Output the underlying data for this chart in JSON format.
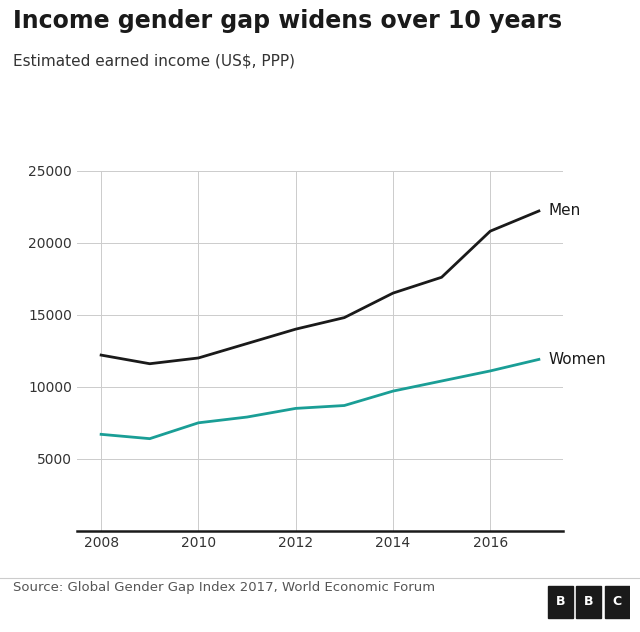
{
  "title": "Income gender gap widens over 10 years",
  "subtitle": "Estimated earned income (US$, PPP)",
  "source_text": "Source: Global Gender Gap Index 2017, World Economic Forum",
  "bbc_text": "BBC",
  "men_years": [
    2008,
    2009,
    2010,
    2011,
    2012,
    2013,
    2014,
    2015,
    2016,
    2017
  ],
  "men_values": [
    12200,
    11600,
    12000,
    13000,
    14000,
    14800,
    16500,
    17600,
    20800,
    22200
  ],
  "women_years": [
    2008,
    2009,
    2010,
    2011,
    2012,
    2013,
    2014,
    2015,
    2016,
    2017
  ],
  "women_values": [
    6700,
    6400,
    7500,
    7900,
    8500,
    8700,
    9700,
    10400,
    11100,
    11900
  ],
  "men_color": "#1a1a1a",
  "women_color": "#1a9e96",
  "background_color": "#ffffff",
  "plot_bg_color": "#ffffff",
  "grid_color": "#cccccc",
  "ylim": [
    0,
    25000
  ],
  "xlim": [
    2007.5,
    2017.5
  ],
  "yticks": [
    0,
    5000,
    10000,
    15000,
    20000,
    25000
  ],
  "xticks": [
    2008,
    2010,
    2012,
    2014,
    2016
  ],
  "line_width": 2.0,
  "title_fontsize": 17,
  "subtitle_fontsize": 11,
  "tick_fontsize": 10,
  "label_fontsize": 11,
  "source_fontsize": 9.5,
  "bbc_fontsize": 11
}
